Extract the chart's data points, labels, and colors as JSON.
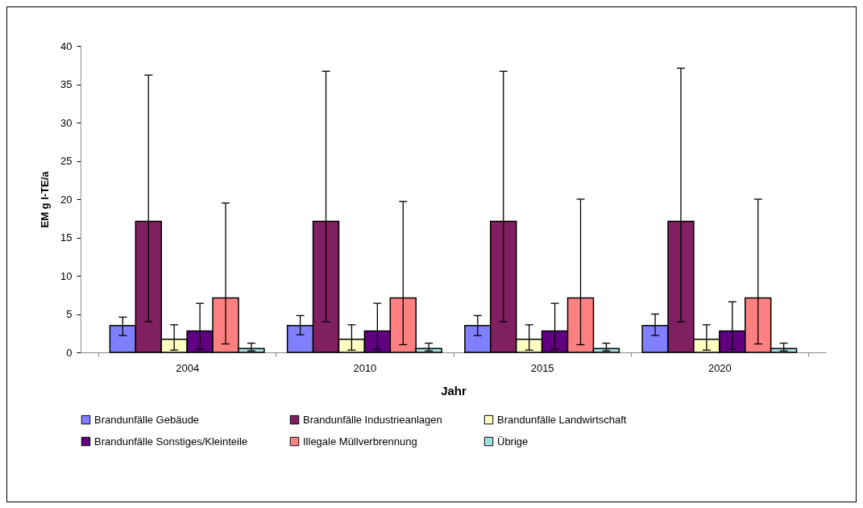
{
  "chart_data": {
    "type": "bar",
    "xlabel": "Jahr",
    "ylabel": "EM g I-TE/a",
    "categories": [
      "2004",
      "2010",
      "2015",
      "2020"
    ],
    "series": [
      {
        "name": "Brandunfälle Gebäude",
        "color": "#8080ff",
        "values": [
          3.5,
          3.5,
          3.5,
          3.5
        ],
        "errors": [
          [
            2.2,
            4.6
          ],
          [
            2.3,
            4.8
          ],
          [
            2.2,
            4.8
          ],
          [
            2.2,
            5.0
          ]
        ]
      },
      {
        "name": "Brandunfälle Industrieanlagen",
        "color": "#802060",
        "values": [
          17.1,
          17.1,
          17.1,
          17.1
        ],
        "errors": [
          [
            4.0,
            36.2
          ],
          [
            4.0,
            36.7
          ],
          [
            4.0,
            36.7
          ],
          [
            4.0,
            37.1
          ]
        ]
      },
      {
        "name": "Brandunfälle Landwirtschaft",
        "color": "#ffffc0",
        "values": [
          1.7,
          1.7,
          1.7,
          1.7
        ],
        "errors": [
          [
            0.3,
            3.6
          ],
          [
            0.3,
            3.6
          ],
          [
            0.3,
            3.6
          ],
          [
            0.3,
            3.6
          ]
        ]
      },
      {
        "name": "Brandunfälle Sonstiges/Kleinteile",
        "color": "#600080",
        "values": [
          2.8,
          2.8,
          2.8,
          2.8
        ],
        "errors": [
          [
            0.4,
            6.4
          ],
          [
            0.4,
            6.4
          ],
          [
            0.4,
            6.4
          ],
          [
            0.4,
            6.6
          ]
        ]
      },
      {
        "name": "Illegale Müllverbrennung",
        "color": "#ff8080",
        "values": [
          7.1,
          7.1,
          7.1,
          7.1
        ],
        "errors": [
          [
            1.1,
            19.5
          ],
          [
            1.0,
            19.7
          ],
          [
            1.0,
            20.0
          ],
          [
            1.1,
            20.0
          ]
        ]
      },
      {
        "name": "Übrige",
        "color": "#a0e0e0",
        "values": [
          0.5,
          0.5,
          0.5,
          0.5
        ],
        "errors": [
          [
            0.2,
            1.2
          ],
          [
            0.2,
            1.2
          ],
          [
            0.2,
            1.2
          ],
          [
            0.2,
            1.2
          ]
        ]
      }
    ],
    "ylim": [
      0,
      40
    ],
    "yticks": [
      0,
      5,
      10,
      15,
      20,
      25,
      30,
      35,
      40
    ],
    "grid": false,
    "legend": "bottom"
  }
}
